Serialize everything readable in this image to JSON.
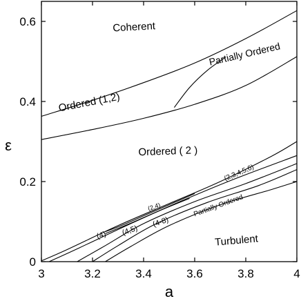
{
  "chart_data": {
    "type": "line",
    "xlabel": "a",
    "ylabel": "ε",
    "xlim": [
      3,
      4
    ],
    "ylim": [
      0,
      0.65
    ],
    "x_ticks": [
      "3",
      "3.2",
      "3.4",
      "3.6",
      "3.8",
      "4"
    ],
    "y_ticks": [
      "0",
      "0.2",
      "0.4",
      "0.6"
    ],
    "grid": false,
    "legend": "none",
    "boundaries": [
      {
        "points": [
          [
            3.0,
            0.363
          ],
          [
            3.2,
            0.403
          ],
          [
            3.4,
            0.447
          ],
          [
            3.6,
            0.496
          ],
          [
            3.8,
            0.557
          ],
          [
            4.0,
            0.627
          ]
        ]
      },
      {
        "points": [
          [
            3.0,
            0.305
          ],
          [
            3.2,
            0.33
          ],
          [
            3.4,
            0.358
          ],
          [
            3.6,
            0.393
          ],
          [
            3.8,
            0.44
          ],
          [
            4.0,
            0.512
          ]
        ]
      },
      {
        "points": [
          [
            3.52,
            0.385
          ],
          [
            3.58,
            0.435
          ],
          [
            3.65,
            0.478
          ],
          [
            3.72,
            0.51
          ]
        ]
      },
      {
        "points": [
          [
            3.0,
            0.002
          ],
          [
            3.1,
            0.03
          ],
          [
            3.3,
            0.09
          ],
          [
            3.5,
            0.145
          ],
          [
            3.7,
            0.2
          ],
          [
            3.9,
            0.263
          ],
          [
            4.0,
            0.3
          ]
        ]
      },
      {
        "points": [
          [
            3.03,
            0.0
          ],
          [
            3.15,
            0.035
          ],
          [
            3.35,
            0.095
          ],
          [
            3.55,
            0.152
          ],
          [
            3.75,
            0.205
          ],
          [
            4.0,
            0.265
          ]
        ]
      },
      {
        "points": [
          [
            3.14,
            0.0
          ],
          [
            3.25,
            0.04
          ],
          [
            3.4,
            0.095
          ],
          [
            3.6,
            0.15
          ],
          [
            3.8,
            0.195
          ],
          [
            4.0,
            0.245
          ]
        ]
      },
      {
        "points": [
          [
            3.2,
            0.0
          ],
          [
            3.3,
            0.04
          ],
          [
            3.45,
            0.095
          ],
          [
            3.65,
            0.148
          ],
          [
            3.85,
            0.19
          ],
          [
            4.0,
            0.23
          ]
        ]
      },
      {
        "points": [
          [
            3.25,
            0.0
          ],
          [
            3.35,
            0.038
          ],
          [
            3.5,
            0.09
          ],
          [
            3.7,
            0.142
          ],
          [
            3.9,
            0.18
          ],
          [
            4.0,
            0.2
          ]
        ]
      },
      {
        "points": [
          [
            3.25,
            0.075
          ],
          [
            3.32,
            0.092
          ],
          [
            3.42,
            0.12
          ],
          [
            3.6,
            0.17
          ]
        ]
      },
      {
        "points": [
          [
            3.25,
            0.07
          ],
          [
            3.35,
            0.096
          ],
          [
            3.45,
            0.124
          ],
          [
            3.58,
            0.158
          ]
        ]
      }
    ],
    "annotations": [
      {
        "text": "Coherent",
        "x": 3.28,
        "y": 0.575,
        "rotate": -3,
        "size": 15
      },
      {
        "text": "Partially Ordered",
        "x": 3.66,
        "y": 0.49,
        "rotate": -13,
        "size": 14
      },
      {
        "text": "Ordered (1,2)",
        "x": 3.07,
        "y": 0.375,
        "rotate": -11,
        "size": 15
      },
      {
        "text": "Ordered ( 2 )",
        "x": 3.38,
        "y": 0.265,
        "rotate": -2,
        "size": 15
      },
      {
        "text": "(2,3,4,5,6)",
        "x": 3.72,
        "y": 0.202,
        "rotate": -23,
        "size": 10
      },
      {
        "text": "(2,4)",
        "x": 3.42,
        "y": 0.127,
        "rotate": -19,
        "size": 9
      },
      {
        "text": "(4)",
        "x": 3.22,
        "y": 0.057,
        "rotate": -19,
        "size": 11
      },
      {
        "text": "(4,5)",
        "x": 3.32,
        "y": 0.066,
        "rotate": -19,
        "size": 11
      },
      {
        "text": "(4-8)",
        "x": 3.44,
        "y": 0.087,
        "rotate": -19,
        "size": 11
      },
      {
        "text": "Partially Ordered",
        "x": 3.6,
        "y": 0.113,
        "rotate": -20,
        "size": 10
      },
      {
        "text": "Turbulent",
        "x": 3.68,
        "y": 0.04,
        "rotate": -5,
        "size": 15
      }
    ]
  }
}
